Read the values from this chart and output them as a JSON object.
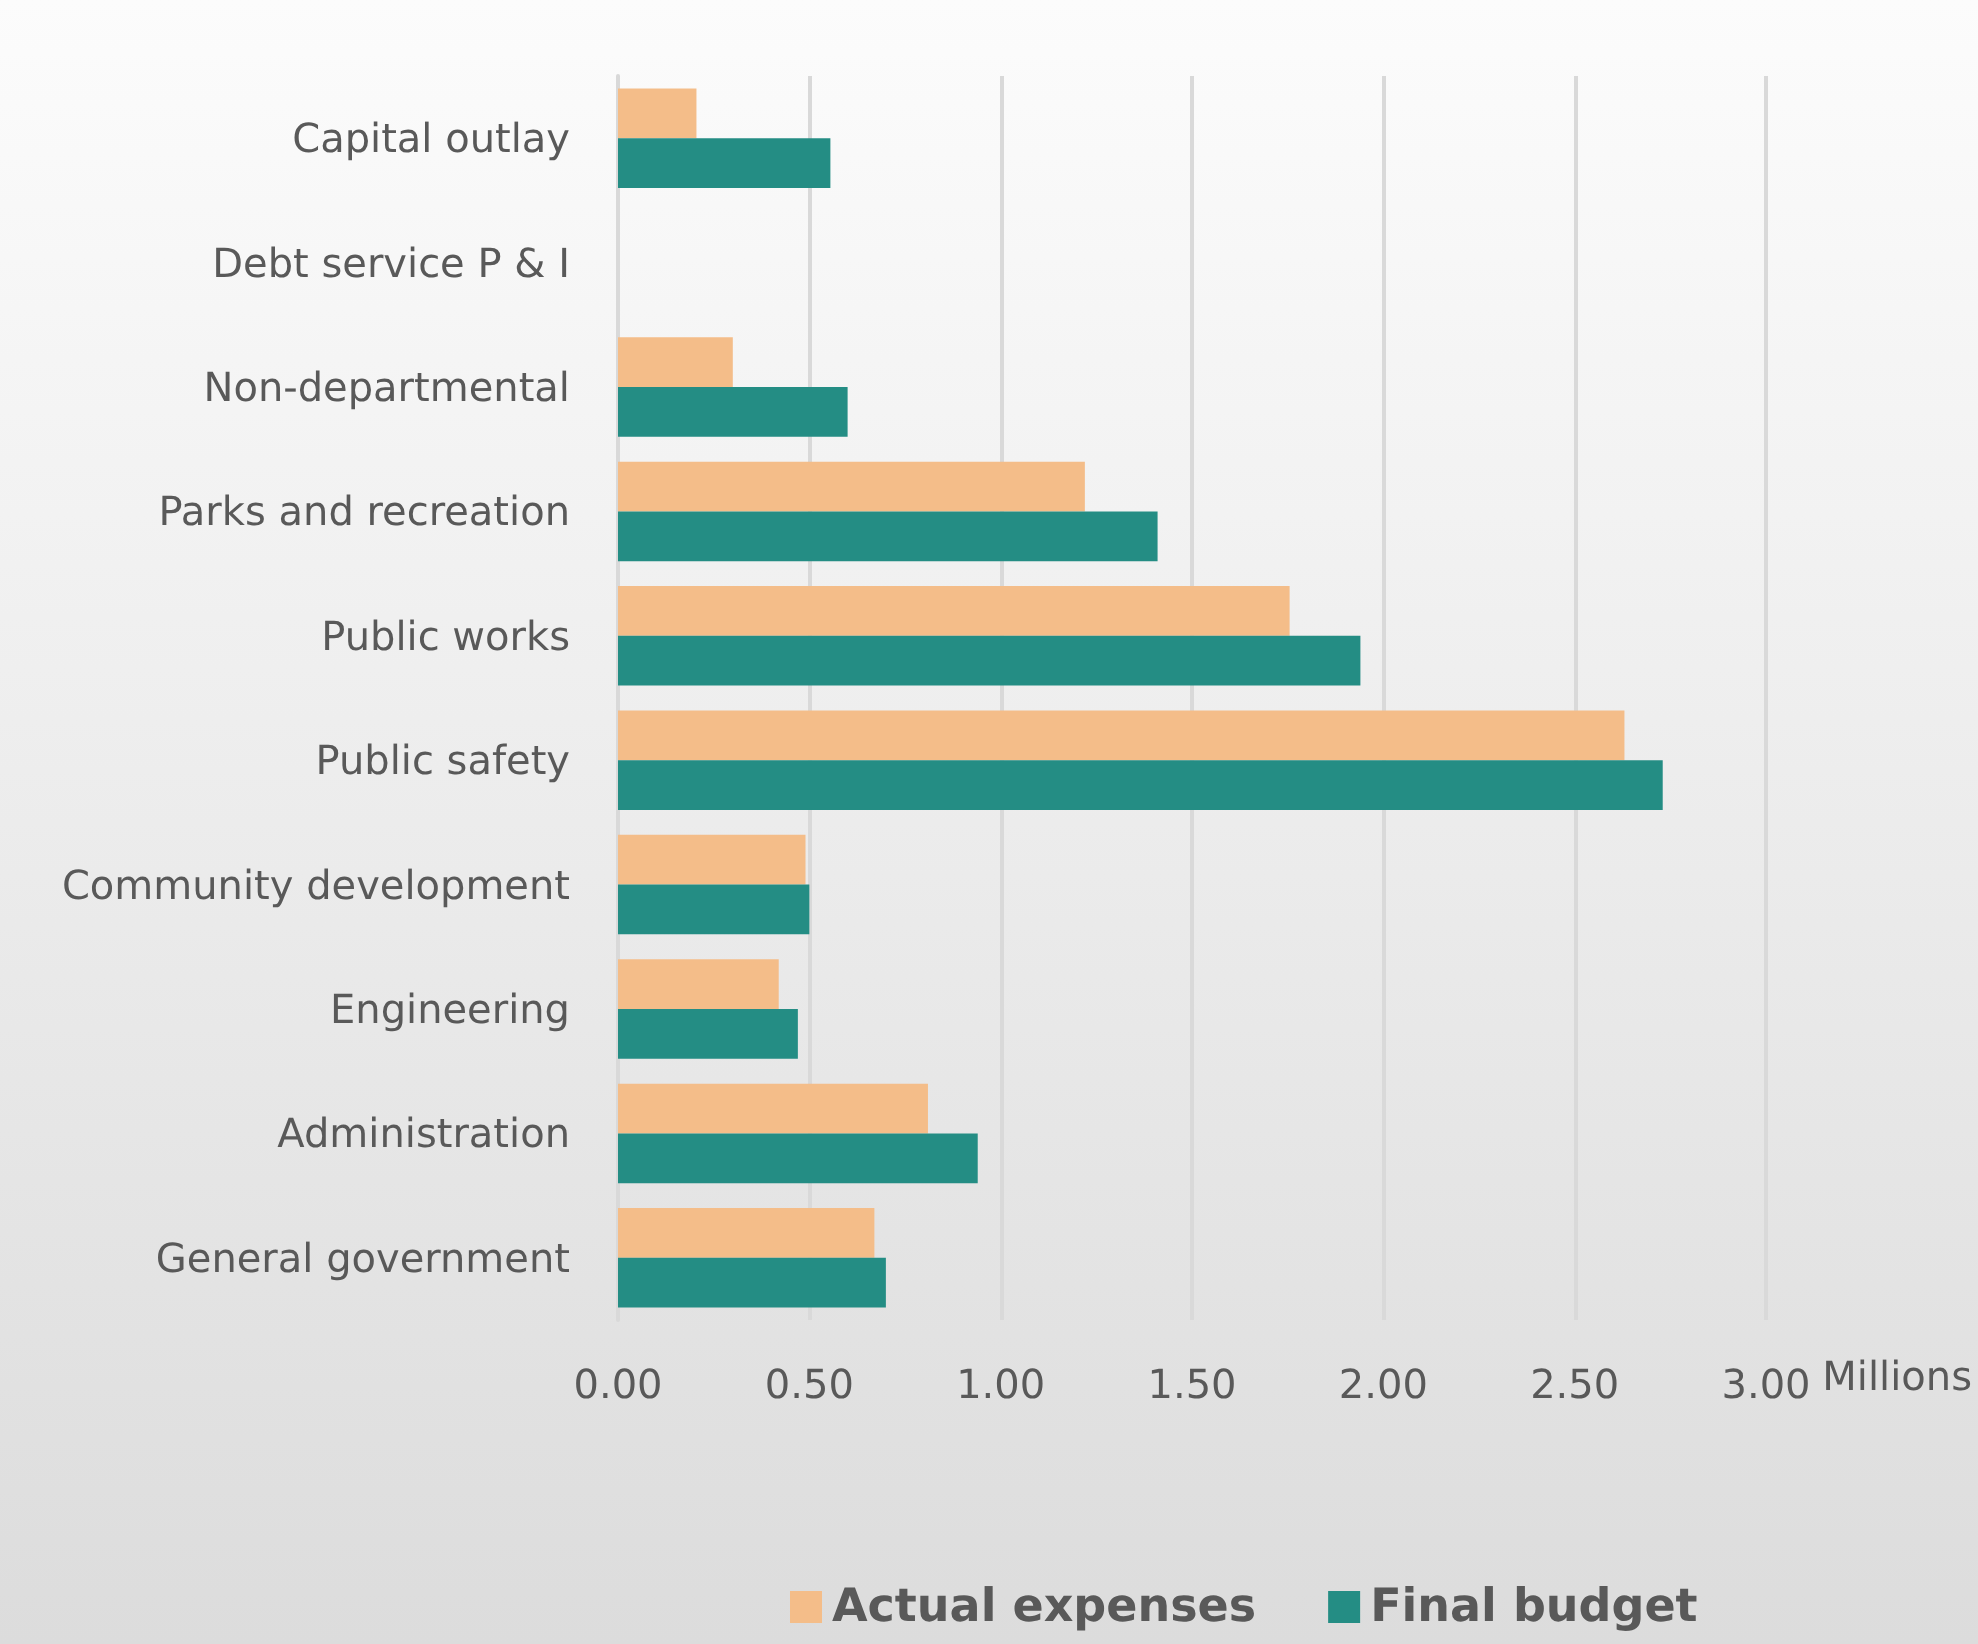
{
  "chart_data": {
    "type": "bar",
    "orientation": "horizontal",
    "xlabel": "Millions",
    "categories": [
      "Capital outlay",
      "Debt service P & I",
      "Non-departmental",
      "Parks and recreation",
      "Public works",
      "Public safety",
      "Community development",
      "Engineering",
      "Administration",
      "General government"
    ],
    "series": [
      {
        "name": "Actual expenses",
        "color": "#f4bd89",
        "values": [
          0.205,
          0,
          0.3,
          1.22,
          1.755,
          2.63,
          0.49,
          0.42,
          0.81,
          0.67
        ]
      },
      {
        "name": "Final budget",
        "color": "#248d84",
        "values": [
          0.555,
          0,
          0.6,
          1.41,
          1.94,
          2.73,
          0.5,
          0.47,
          0.94,
          0.7
        ]
      }
    ],
    "xlim": [
      0,
      3
    ],
    "xticks": [
      {
        "value": 0,
        "label": "0.00"
      },
      {
        "value": 0.5,
        "label": "0.50"
      },
      {
        "value": 1,
        "label": "1.00"
      },
      {
        "value": 1.5,
        "label": "1.50"
      },
      {
        "value": 2,
        "label": "2.00"
      },
      {
        "value": 2.5,
        "label": "2.50"
      },
      {
        "value": 3,
        "label": "3.00"
      }
    ],
    "grid": "x",
    "legend": "bottom"
  }
}
